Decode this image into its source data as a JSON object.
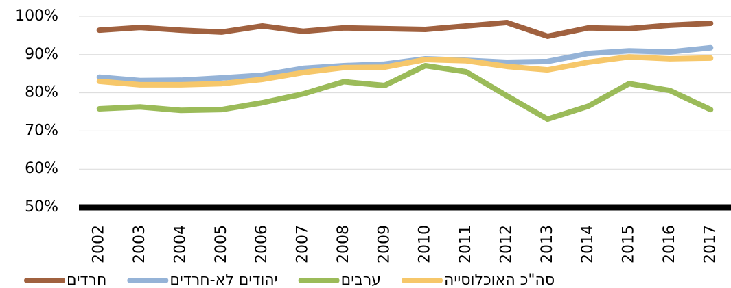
{
  "chart_data": {
    "type": "line",
    "categories": [
      "2002",
      "2003",
      "2004",
      "2005",
      "2006",
      "2007",
      "2008",
      "2009",
      "2010",
      "2011",
      "2012",
      "2013",
      "2014",
      "2015",
      "2016",
      "2017"
    ],
    "series": [
      {
        "name": "חרדים",
        "color": "#a0613f",
        "values": [
          96.4,
          97.1,
          96.4,
          95.9,
          97.5,
          96.1,
          97,
          96.8,
          96.6,
          97.5,
          98.4,
          94.8,
          97,
          96.8,
          97.7,
          98.2
        ]
      },
      {
        "name": "יהודים לא-חרדים",
        "color": "#95b3d7",
        "values": [
          84.1,
          83.2,
          83.3,
          83.9,
          84.6,
          86.4,
          87.1,
          87.5,
          88.9,
          88.5,
          88,
          88.2,
          90.3,
          91,
          90.7,
          91.8
        ]
      },
      {
        "name": "ערבים",
        "color": "#9bbb59",
        "values": [
          75.8,
          76.3,
          75.4,
          75.6,
          77.4,
          79.7,
          82.9,
          81.9,
          87.1,
          85.5,
          79.2,
          73.1,
          76.5,
          82.4,
          80.6,
          75.6
        ]
      },
      {
        "name": "סה\"כ האוכלוסייה",
        "color": "#f6c76a",
        "values": [
          83,
          82.1,
          82.1,
          82.4,
          83.5,
          85.3,
          86.6,
          86.7,
          88.7,
          88.4,
          86.9,
          86,
          88,
          89.4,
          88.9,
          89.1
        ]
      }
    ],
    "ylim": [
      50,
      100
    ],
    "yticks": [
      {
        "value": 50,
        "label": "50%"
      },
      {
        "value": 60,
        "label": "60%"
      },
      {
        "value": 70,
        "label": "70%"
      },
      {
        "value": 80,
        "label": "80%"
      },
      {
        "value": 90,
        "label": "90%"
      },
      {
        "value": 100,
        "label": "100%"
      }
    ],
    "grid": true,
    "legend": "bottom"
  }
}
